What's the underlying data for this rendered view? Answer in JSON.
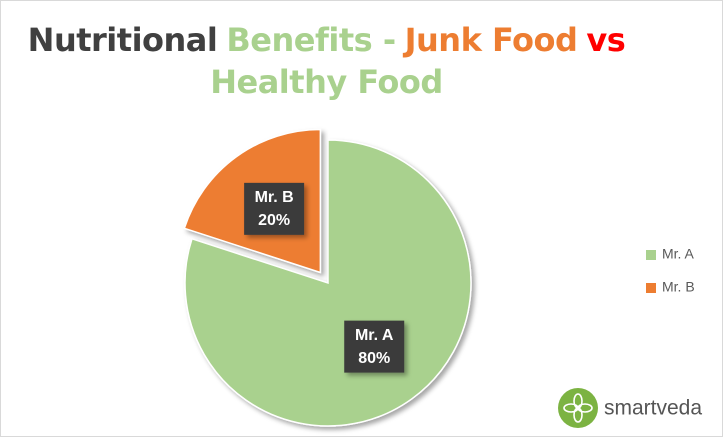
{
  "chart_data": {
    "type": "pie",
    "title_segments": [
      {
        "text": "Nutritional",
        "color": "#404040"
      },
      {
        "text": "Benefits -",
        "color": "#a9d18e"
      },
      {
        "text": "Junk Food",
        "color": "#ed7d31"
      },
      {
        "text": "vs",
        "color": "#ff0000"
      },
      {
        "text": "Healthy Food",
        "color": "#a9d18e"
      }
    ],
    "categories": [
      "Mr. A",
      "Mr. B"
    ],
    "values": [
      80,
      20
    ],
    "value_labels": [
      "80%",
      "20%"
    ],
    "colors": [
      "#a9d18e",
      "#ed7d31"
    ],
    "exploded": [
      false,
      true
    ],
    "legend": "right",
    "watermark": "smartveda"
  }
}
